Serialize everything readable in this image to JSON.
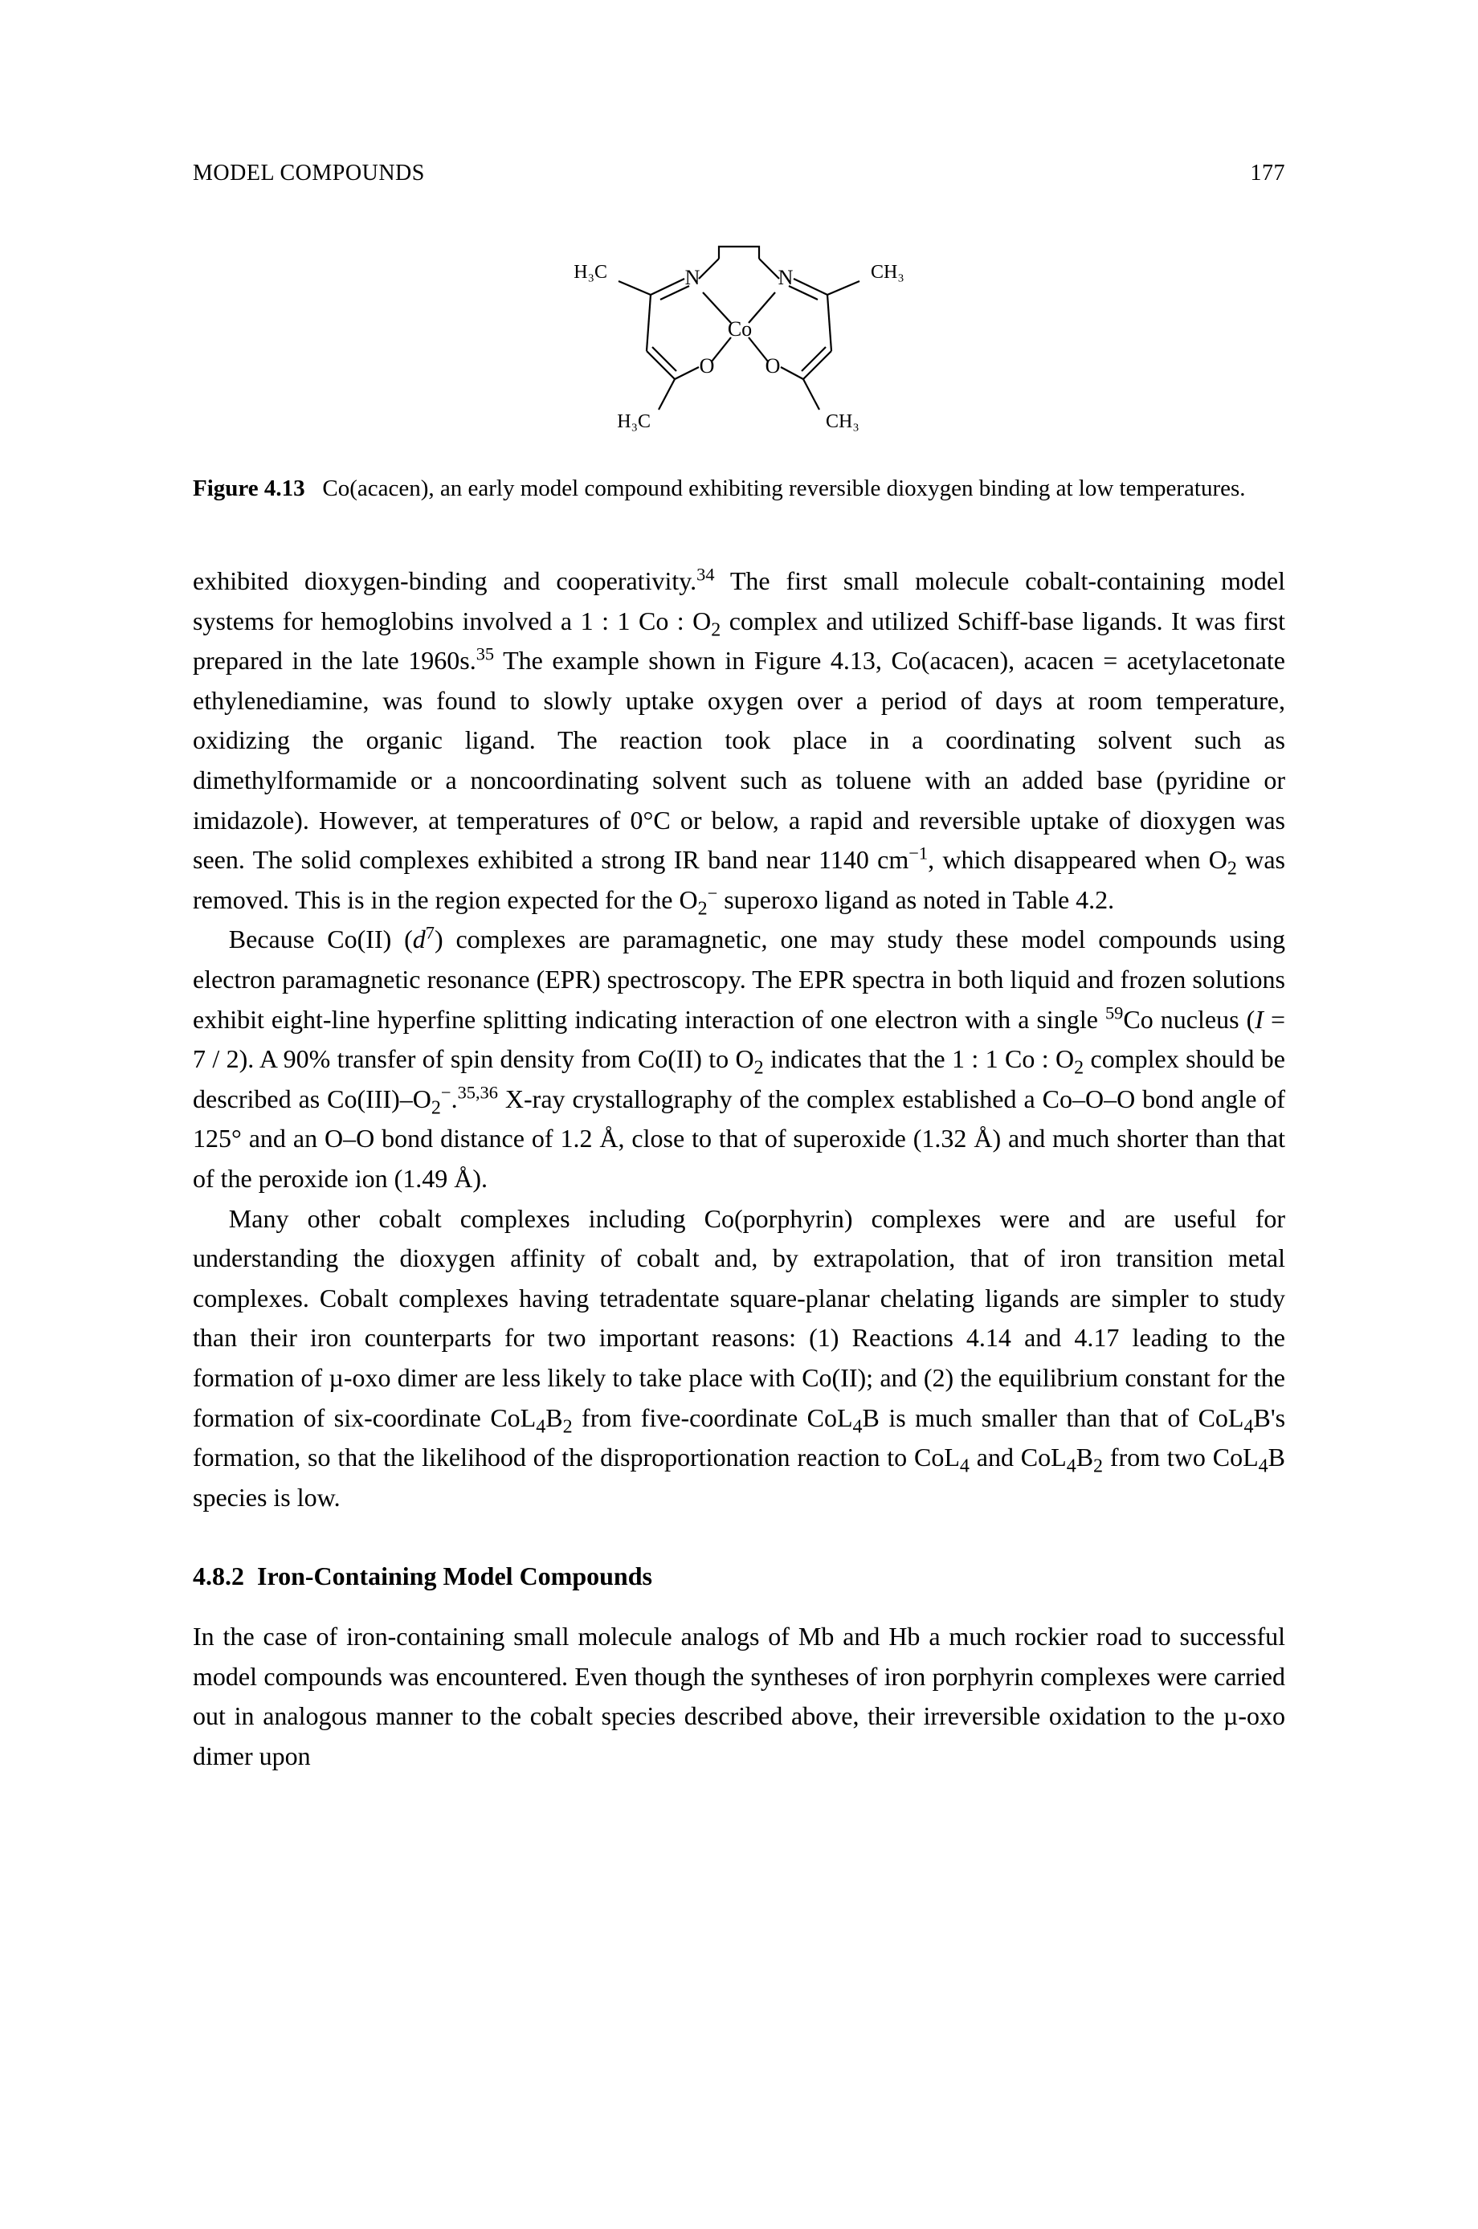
{
  "page": {
    "running_head_left": "MODEL COMPOUNDS",
    "running_head_right": "177",
    "text_color": "#000000",
    "background_color": "#ffffff"
  },
  "figure": {
    "number_label": "Figure 4.13",
    "caption_rest": "Co(acacen), an early model compound exhibiting reversible dioxygen binding at low temperatures.",
    "labels": {
      "ch3_tl": "H₃C",
      "ch3_tr": "CH₃",
      "ch3_bl": "H₃C",
      "ch3_br": "CH₃",
      "n_l": "N",
      "n_r": "N",
      "o_l": "O",
      "o_r": "O",
      "co": "Co"
    },
    "stroke_color": "#000000",
    "stroke_width": 2.2
  },
  "body": {
    "p1_html": "exhibited dioxygen-binding and cooperativity.<sup>34</sup> The first small molecule cobalt-containing model systems for hemoglobins involved a 1 : 1 Co : O<sub>2</sub> complex and utilized Schiff-base ligands. It was first prepared in the late 1960s.<sup>35</sup> The example shown in Figure 4.13, Co(acacen), acacen = acetylacetonate ethylenediamine, was found to slowly uptake oxygen over a period of days at room temperature, oxidizing the organic ligand. The reaction took place in a coordinating solvent such as dimethylformamide or a noncoordinating solvent such as toluene with an added base (pyridine or imidazole). However, at temperatures of 0°C or below, a rapid and reversible uptake of dioxygen was seen. The solid complexes exhibited a strong IR band near 1140 cm<sup>−1</sup>, which disappeared when O<sub>2</sub> was removed. This is in the region expected for the O<sub>2</sub><sup>−</sup> superoxo ligand as noted in Table 4.2.",
    "p2_html": "Because Co(II) (<span class=\"ital\">d</span><sup>7</sup>) complexes are paramagnetic, one may study these model compounds using electron paramagnetic resonance (EPR) spectroscopy. The EPR spectra in both liquid and frozen solutions exhibit eight-line hyperfine splitting indicating interaction of one electron with a single <sup>59</sup>Co nucleus (<span class=\"ital\">I</span> = 7 / 2). A 90% transfer of spin density from Co(II) to O<sub>2</sub> indicates that the 1 : 1 Co : O<sub>2</sub> complex should be described as Co(III)–O<sub>2</sub><sup>−</sup>.<sup>35,36</sup> X-ray crystallography of the complex established a Co–O–O bond angle of 125° and an O–O bond distance of 1.2 Å, close to that of superoxide (1.32 Å) and much shorter than that of the peroxide ion (1.49 Å).",
    "p3_html": "Many other cobalt complexes including Co(porphyrin) complexes were and are useful for understanding the dioxygen affinity of cobalt and, by extrapolation, that of iron transition metal complexes. Cobalt complexes having tetradentate square-planar chelating ligands are simpler to study than their iron counterparts for two important reasons: (1) Reactions 4.14 and 4.17 leading to the formation of µ-oxo dimer are less likely to take place with Co(II); and (2) the equilibrium constant for the formation of six-coordinate CoL<sub>4</sub>B<sub>2</sub> from five-coordinate CoL<sub>4</sub>B is much smaller than that of CoL<sub>4</sub>B's formation, so that the likelihood of the disproportionation reaction to CoL<sub>4</sub> and CoL<sub>4</sub>B<sub>2</sub> from two CoL<sub>4</sub>B species is low."
  },
  "section": {
    "number": "4.8.2",
    "title": "Iron-Containing Model Compounds",
    "p1_html": "In the case of iron-containing small molecule analogs of Mb and Hb a much rockier road to successful model compounds was encountered. Even though the syntheses of iron porphyrin complexes were carried out in analogous manner to the cobalt species described above, their irreversible oxidation to the µ-oxo dimer upon"
  }
}
